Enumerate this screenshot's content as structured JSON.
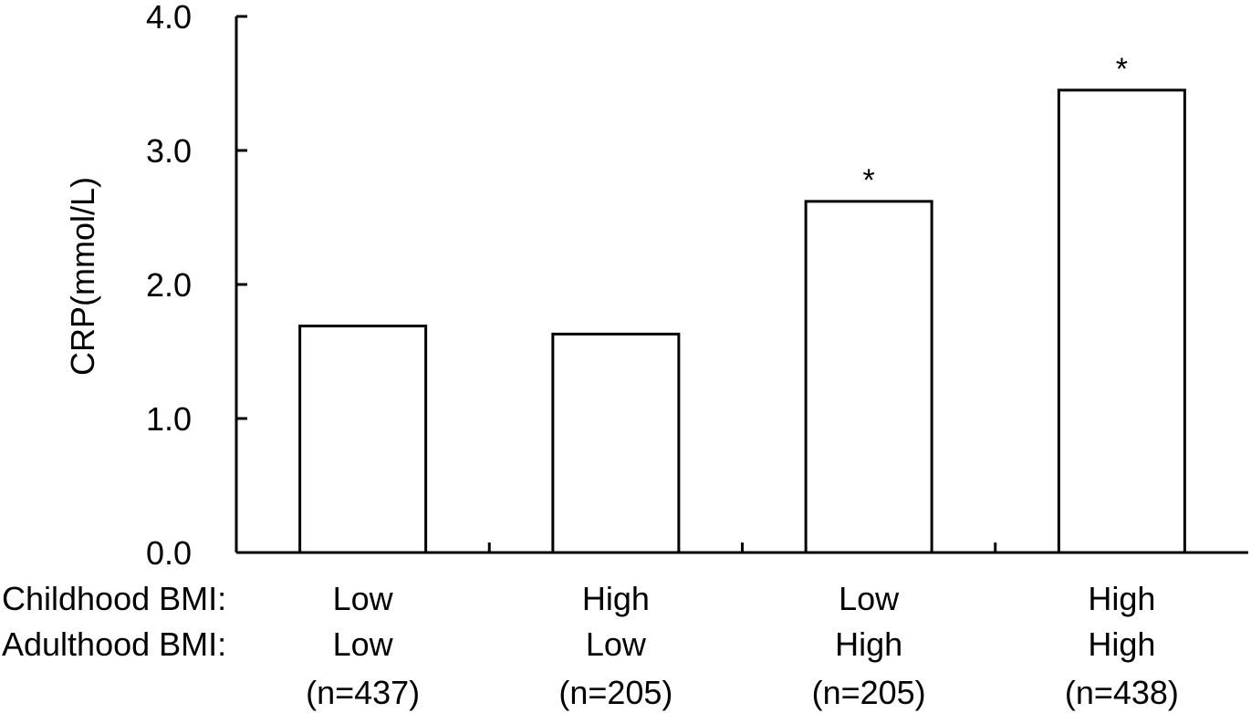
{
  "chart_data": {
    "type": "bar",
    "ylabel": "CRP(mmol/L)",
    "ylim": [
      0,
      4
    ],
    "yticks": [
      "0.0",
      "1.0",
      "2.0",
      "3.0",
      "4.0"
    ],
    "ytick_values": [
      0,
      1,
      2,
      3,
      4
    ],
    "row_labels": [
      "Childhood BMI:",
      "Adulthood BMI:"
    ],
    "categories": [
      {
        "childhood": "Low",
        "adulthood": "Low",
        "n": "(n=437)"
      },
      {
        "childhood": "High",
        "adulthood": "Low",
        "n": "(n=205)"
      },
      {
        "childhood": "Low",
        "adulthood": "High",
        "n": "(n=205)"
      },
      {
        "childhood": "High",
        "adulthood": "High",
        "n": "(n=438)"
      }
    ],
    "values": [
      1.69,
      1.63,
      2.62,
      3.45
    ],
    "markers": [
      "",
      "",
      "*",
      "*"
    ],
    "bar_fill": "#ffffff",
    "bar_stroke": "#000000",
    "grid": false
  }
}
